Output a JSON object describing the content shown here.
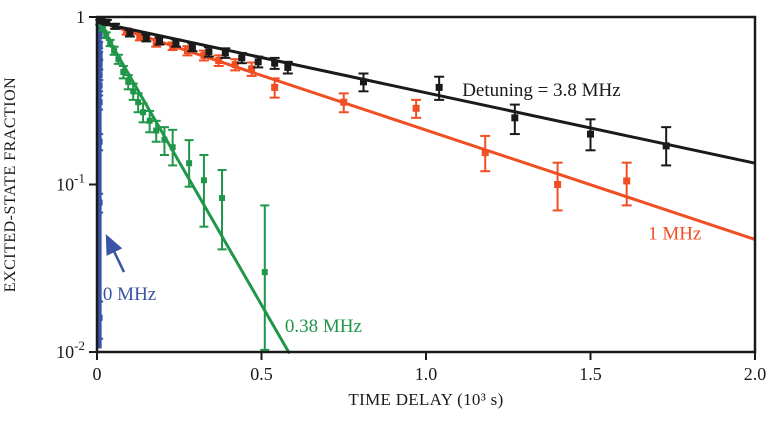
{
  "chart_data": {
    "type": "scatter",
    "subtype": "semilog-y exponential decay with error bars and fit lines",
    "title": "",
    "xlabel": "TIME DELAY (10³ s)",
    "ylabel": "EXCITED-STATE FRACTION",
    "xlim": [
      0,
      2.0
    ],
    "ylim": [
      0.01,
      1
    ],
    "yscale": "log",
    "grid": false,
    "frame": "full-box",
    "xticks": [
      {
        "v": 0,
        "label": "0"
      },
      {
        "v": 0.5,
        "label": "0.5"
      },
      {
        "v": 1.0,
        "label": "1.0"
      },
      {
        "v": 1.5,
        "label": "1.5"
      },
      {
        "v": 2.0,
        "label": "2.0"
      }
    ],
    "yticks": [
      {
        "v": 1,
        "label": "1"
      },
      {
        "v": 0.1,
        "label": "10^-1"
      },
      {
        "v": 0.01,
        "label": "10^-2"
      }
    ],
    "series": [
      {
        "name": "0 MHz",
        "color": "#3a54a6",
        "line": {
          "x1": 0.008,
          "v1": 0.97,
          "x2": 0.008,
          "v2": 0.0105
        },
        "points": [
          [
            0.008,
            0.96,
            0.02,
            0.02
          ],
          [
            0.008,
            0.78,
            0.03,
            0.03
          ],
          [
            0.008,
            0.68,
            0.03,
            0.03
          ],
          [
            0.008,
            0.59,
            0.03,
            0.03
          ],
          [
            0.008,
            0.52,
            0.03,
            0.03
          ],
          [
            0.008,
            0.45,
            0.03,
            0.03
          ],
          [
            0.008,
            0.39,
            0.03,
            0.03
          ],
          [
            0.008,
            0.31,
            0.03,
            0.03
          ],
          [
            0.008,
            0.18,
            0.02,
            0.02
          ],
          [
            0.008,
            0.078,
            0.01,
            0.01
          ],
          [
            0.008,
            0.016,
            0.004,
            0.004
          ]
        ]
      },
      {
        "name": "0.38 MHz",
        "color": "#1f9648",
        "line": {
          "x1": 0,
          "v1": 0.97,
          "x2": 0.585,
          "v2": 0.0098
        },
        "points": [
          [
            0.008,
            0.93,
            0.03,
            0.03
          ],
          [
            0.018,
            0.86,
            0.03,
            0.03
          ],
          [
            0.028,
            0.78,
            0.03,
            0.03
          ],
          [
            0.04,
            0.7,
            0.03,
            0.03
          ],
          [
            0.052,
            0.63,
            0.035,
            0.035
          ],
          [
            0.065,
            0.56,
            0.035,
            0.035
          ],
          [
            0.08,
            0.47,
            0.04,
            0.04
          ],
          [
            0.095,
            0.41,
            0.04,
            0.04
          ],
          [
            0.11,
            0.36,
            0.04,
            0.04
          ],
          [
            0.125,
            0.31,
            0.04,
            0.04
          ],
          [
            0.14,
            0.27,
            0.035,
            0.035
          ],
          [
            0.16,
            0.24,
            0.035,
            0.035
          ],
          [
            0.18,
            0.21,
            0.03,
            0.03
          ],
          [
            0.205,
            0.185,
            0.035,
            0.035
          ],
          [
            0.23,
            0.167,
            0.037,
            0.045
          ],
          [
            0.28,
            0.134,
            0.037,
            0.05
          ],
          [
            0.325,
            0.106,
            0.05,
            0.044
          ],
          [
            0.38,
            0.083,
            0.042,
            0.039
          ],
          [
            0.51,
            0.03,
            0.0197,
            0.045
          ]
        ]
      },
      {
        "name": "1 MHz",
        "color": "#f04e23",
        "line": {
          "x1": 0,
          "v1": 0.95,
          "x2": 2.0,
          "v2": 0.047
        },
        "points": [
          [
            0.09,
            0.82,
            0.035,
            0.035
          ],
          [
            0.13,
            0.76,
            0.035,
            0.035
          ],
          [
            0.18,
            0.7,
            0.035,
            0.035
          ],
          [
            0.23,
            0.67,
            0.035,
            0.035
          ],
          [
            0.275,
            0.63,
            0.04,
            0.04
          ],
          [
            0.325,
            0.59,
            0.04,
            0.04
          ],
          [
            0.37,
            0.55,
            0.04,
            0.04
          ],
          [
            0.42,
            0.52,
            0.04,
            0.04
          ],
          [
            0.47,
            0.49,
            0.045,
            0.045
          ],
          [
            0.54,
            0.38,
            0.05,
            0.05
          ],
          [
            0.75,
            0.31,
            0.04,
            0.04
          ],
          [
            0.97,
            0.285,
            0.035,
            0.035
          ],
          [
            1.18,
            0.155,
            0.035,
            0.04
          ],
          [
            1.4,
            0.1,
            0.03,
            0.035
          ],
          [
            1.61,
            0.105,
            0.03,
            0.03
          ]
        ]
      },
      {
        "name": "Detuning = 3.8 MHz",
        "color": "#1a1a1a",
        "line": {
          "x1": 0,
          "v1": 0.93,
          "x2": 2.0,
          "v2": 0.134
        },
        "points": [
          [
            0.012,
            0.96,
            0.03,
            0.03
          ],
          [
            0.03,
            0.93,
            0.03,
            0.03
          ],
          [
            0.055,
            0.88,
            0.03,
            0.03
          ],
          [
            0.1,
            0.8,
            0.035,
            0.035
          ],
          [
            0.15,
            0.75,
            0.035,
            0.035
          ],
          [
            0.19,
            0.72,
            0.035,
            0.035
          ],
          [
            0.24,
            0.7,
            0.035,
            0.035
          ],
          [
            0.29,
            0.66,
            0.035,
            0.035
          ],
          [
            0.34,
            0.62,
            0.04,
            0.04
          ],
          [
            0.39,
            0.61,
            0.04,
            0.04
          ],
          [
            0.44,
            0.57,
            0.04,
            0.04
          ],
          [
            0.49,
            0.54,
            0.04,
            0.04
          ],
          [
            0.54,
            0.53,
            0.04,
            0.04
          ],
          [
            0.58,
            0.5,
            0.04,
            0.04
          ],
          [
            0.81,
            0.41,
            0.05,
            0.05
          ],
          [
            1.04,
            0.38,
            0.06,
            0.06
          ],
          [
            1.27,
            0.25,
            0.05,
            0.05
          ],
          [
            1.5,
            0.2,
            0.04,
            0.045
          ],
          [
            1.73,
            0.17,
            0.04,
            0.05
          ]
        ]
      }
    ],
    "annotations": [
      {
        "id": "detuning",
        "text": "Detuning = 3.8 MHz",
        "x": 1.11,
        "y": 0.337,
        "color": "#1a1a1a",
        "anchor": "start"
      },
      {
        "id": "one-mhz",
        "text": "1 MHz",
        "x": 1.675,
        "y": 0.047,
        "color": "#f04e23",
        "anchor": "start"
      },
      {
        "id": "p38-mhz",
        "text": "0.38 MHz",
        "x": 0.571,
        "y": 0.0132,
        "color": "#1f9648",
        "anchor": "start"
      },
      {
        "id": "zero-mhz",
        "text": "0 MHz",
        "x": 0.018,
        "y": 0.0204,
        "color": "#3a54a6",
        "anchor": "start",
        "arrow": {
          "x1": 0.082,
          "y1": 0.03,
          "x2": 0.03,
          "y2": 0.049
        }
      }
    ]
  }
}
